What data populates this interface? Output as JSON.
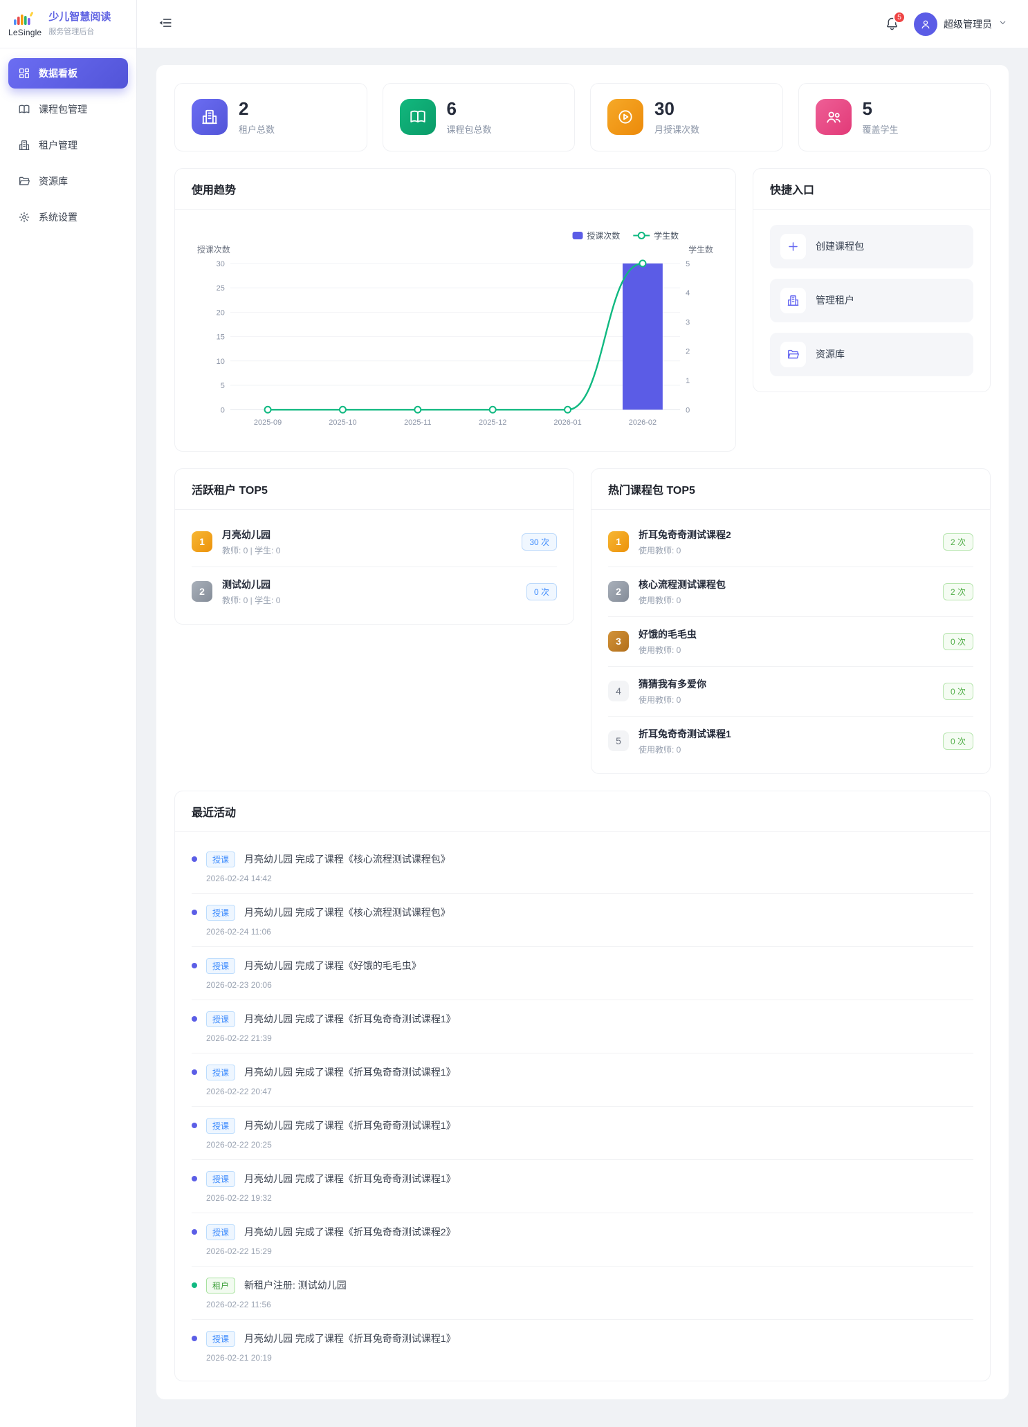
{
  "colors": {
    "accent": "#5b5ce6",
    "green": "#10b981",
    "orange": "#f59e0b",
    "pink": "#e8447e",
    "badge_blue": "#3d8bfd",
    "badge_green": "#52ae49",
    "notification_red": "#ef4444"
  },
  "sidebar": {
    "logo_text": "LeSingle",
    "title": "少儿智慧阅读",
    "subtitle": "服务管理后台",
    "items": [
      {
        "label": "数据看板",
        "icon": "dashboard-grid-icon",
        "active": true
      },
      {
        "label": "课程包管理",
        "icon": "open-book-icon",
        "active": false
      },
      {
        "label": "租户管理",
        "icon": "building-icon",
        "active": false
      },
      {
        "label": "资源库",
        "icon": "folder-icon",
        "active": false
      },
      {
        "label": "系统设置",
        "icon": "gear-icon",
        "active": false
      }
    ]
  },
  "header": {
    "notification_count": "5",
    "user_name": "超级管理员"
  },
  "stats": [
    {
      "value": "2",
      "label": "租户总数",
      "icon": "building-icon"
    },
    {
      "value": "6",
      "label": "课程包总数",
      "icon": "open-book-icon"
    },
    {
      "value": "30",
      "label": "月授课次数",
      "icon": "play-circle-icon"
    },
    {
      "value": "5",
      "label": "覆盖学生",
      "icon": "users-icon"
    }
  ],
  "chart_data": {
    "type": "bar",
    "title": "使用趋势",
    "categories": [
      "2025-09",
      "2025-10",
      "2025-11",
      "2025-12",
      "2026-01",
      "2026-02"
    ],
    "series": [
      {
        "name": "授课次数",
        "kind": "bar",
        "axis": "left",
        "color": "#5b5ce6",
        "values": [
          0,
          0,
          0,
          0,
          0,
          30
        ]
      },
      {
        "name": "学生数",
        "kind": "line",
        "axis": "right",
        "color": "#10b981",
        "values": [
          0,
          0,
          0,
          0,
          0,
          5
        ]
      }
    ],
    "left_axis": {
      "label": "授课次数",
      "ticks": [
        0,
        5,
        10,
        15,
        20,
        25,
        30
      ],
      "max": 30
    },
    "right_axis": {
      "label": "学生数",
      "ticks": [
        0,
        1,
        2,
        3,
        4,
        5
      ],
      "max": 5
    },
    "legend_position": "top-right",
    "grid": true
  },
  "quick_entry": {
    "title": "快捷入口",
    "items": [
      {
        "label": "创建课程包",
        "icon": "plus-icon"
      },
      {
        "label": "管理租户",
        "icon": "building-icon"
      },
      {
        "label": "资源库",
        "icon": "folder-icon"
      }
    ]
  },
  "active_tenants": {
    "title": "活跃租户 TOP5",
    "items": [
      {
        "rank": "1",
        "name": "月亮幼儿园",
        "meta": "教师: 0 | 学生: 0",
        "badge": "30 次"
      },
      {
        "rank": "2",
        "name": "测试幼儿园",
        "meta": "教师: 0 | 学生: 0",
        "badge": "0 次"
      }
    ]
  },
  "hot_packages": {
    "title": "热门课程包 TOP5",
    "items": [
      {
        "rank": "1",
        "name": "折耳兔奇奇测试课程2",
        "meta": "使用教师: 0",
        "badge": "2 次"
      },
      {
        "rank": "2",
        "name": "核心流程测试课程包",
        "meta": "使用教师: 0",
        "badge": "2 次"
      },
      {
        "rank": "3",
        "name": "好饿的毛毛虫",
        "meta": "使用教师: 0",
        "badge": "0 次"
      },
      {
        "rank": "4",
        "name": "猜猜我有多爱你",
        "meta": "使用教师: 0",
        "badge": "0 次"
      },
      {
        "rank": "5",
        "name": "折耳兔奇奇测试课程1",
        "meta": "使用教师: 0",
        "badge": "0 次"
      }
    ]
  },
  "recent_activity": {
    "title": "最近活动",
    "items": [
      {
        "tag": "授课",
        "type": "course",
        "text": "月亮幼儿园 完成了课程《核心流程测试课程包》",
        "time": "2026-02-24 14:42"
      },
      {
        "tag": "授课",
        "type": "course",
        "text": "月亮幼儿园 完成了课程《核心流程测试课程包》",
        "time": "2026-02-24 11:06"
      },
      {
        "tag": "授课",
        "type": "course",
        "text": "月亮幼儿园 完成了课程《好饿的毛毛虫》",
        "time": "2026-02-23 20:06"
      },
      {
        "tag": "授课",
        "type": "course",
        "text": "月亮幼儿园 完成了课程《折耳兔奇奇测试课程1》",
        "time": "2026-02-22 21:39"
      },
      {
        "tag": "授课",
        "type": "course",
        "text": "月亮幼儿园 完成了课程《折耳兔奇奇测试课程1》",
        "time": "2026-02-22 20:47"
      },
      {
        "tag": "授课",
        "type": "course",
        "text": "月亮幼儿园 完成了课程《折耳兔奇奇测试课程1》",
        "time": "2026-02-22 20:25"
      },
      {
        "tag": "授课",
        "type": "course",
        "text": "月亮幼儿园 完成了课程《折耳兔奇奇测试课程1》",
        "time": "2026-02-22 19:32"
      },
      {
        "tag": "授课",
        "type": "course",
        "text": "月亮幼儿园 完成了课程《折耳兔奇奇测试课程2》",
        "time": "2026-02-22 15:29"
      },
      {
        "tag": "租户",
        "type": "tenant",
        "text": "新租户注册: 测试幼儿园",
        "time": "2026-02-22 11:56"
      },
      {
        "tag": "授课",
        "type": "course",
        "text": "月亮幼儿园 完成了课程《折耳兔奇奇测试课程1》",
        "time": "2026-02-21 20:19"
      }
    ]
  }
}
